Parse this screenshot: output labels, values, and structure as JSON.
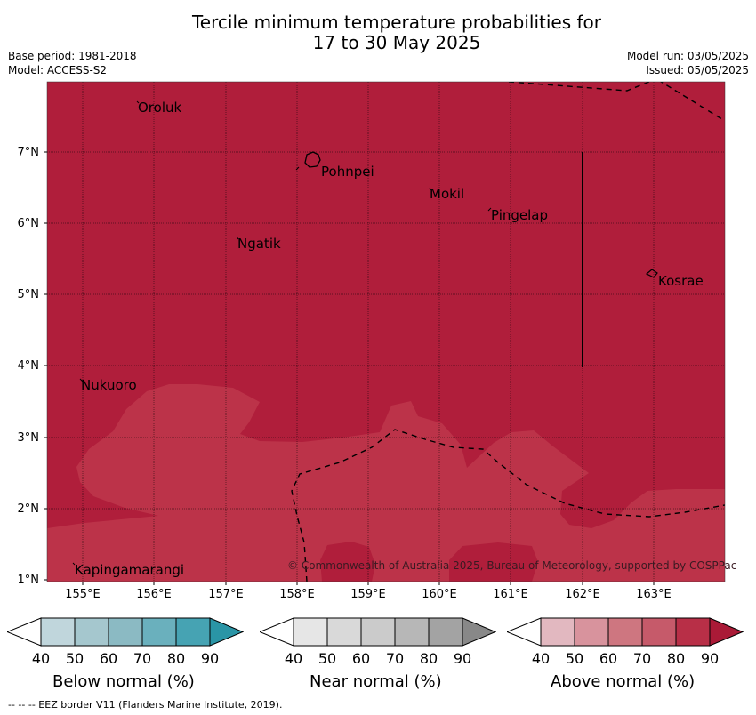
{
  "title_line1": "Tercile minimum temperature probabilities for",
  "title_line2": "17 to 30 May 2025",
  "meta_left": [
    "Base period: 1981-2018",
    "Model: ACCESS-S2"
  ],
  "meta_right": [
    "Model run: 03/05/2025",
    "Issued: 05/05/2025"
  ],
  "map": {
    "y_labels": [
      "7°N",
      "6°N",
      "5°N",
      "4°N",
      "3°N",
      "2°N",
      "1°N"
    ],
    "x_labels": [
      "155°E",
      "156°E",
      "157°E",
      "158°E",
      "159°E",
      "160°E",
      "161°E",
      "162°E",
      "163°E"
    ],
    "places": [
      "Oroluk",
      "Pohnpei",
      "Mokil",
      "Pingelap",
      "Ngatik",
      "Kosrae",
      "Nukuoro",
      "Kapingamarangi"
    ],
    "credit": "© Commonwealth of Australia 2025, Bureau of Meteorology, supported by COSPPac",
    "colors": {
      "above_80": "#b01e3b",
      "above_70": "#bc3349"
    }
  },
  "colorbars": [
    {
      "title": "Below normal (%)",
      "ticks": [
        "40",
        "50",
        "60",
        "70",
        "80",
        "90"
      ],
      "colors": [
        "#ffffff",
        "#c0d6dc",
        "#a5c7ce",
        "#8bbac3",
        "#6ab0bd",
        "#46a3b3",
        "#2a95a6"
      ]
    },
    {
      "title": "Near normal (%)",
      "ticks": [
        "40",
        "50",
        "60",
        "70",
        "80",
        "90"
      ],
      "colors": [
        "#ffffff",
        "#e6e6e6",
        "#d9d9d9",
        "#cbcbcb",
        "#b7b7b7",
        "#a3a3a3",
        "#888888"
      ]
    },
    {
      "title": "Above normal (%)",
      "ticks": [
        "40",
        "50",
        "60",
        "70",
        "80",
        "90"
      ],
      "colors": [
        "#ffffff",
        "#e2b8c0",
        "#d8939d",
        "#ce7680",
        "#c65a6a",
        "#b82f47",
        "#aa1a37"
      ]
    }
  ],
  "footer": "-- -- -- EEZ border V11 (Flanders Marine Institute, 2019)."
}
